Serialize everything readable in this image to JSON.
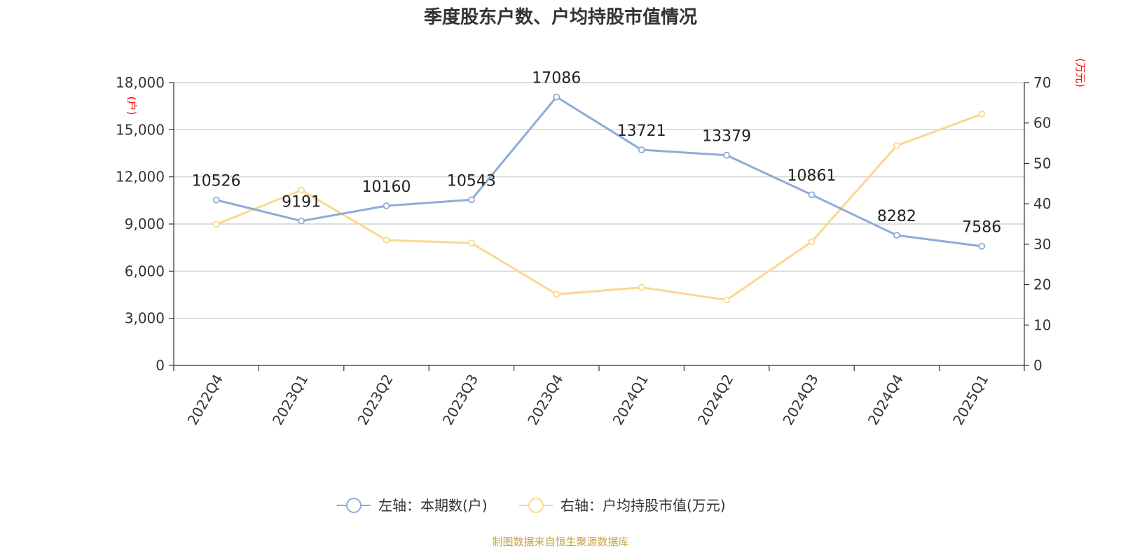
{
  "title": "季度股东户数、户均持股市值情况",
  "source": "制图数据来自恒生聚源数据库",
  "colors": {
    "holders": "#8facd8",
    "avg_value": "#fbd88f",
    "unit_red": "#ff0000",
    "source_gold": "#c9a04a",
    "grid": "#c8c8c8",
    "axis": "#333333"
  },
  "chart_data": {
    "type": "line",
    "title": "季度股东户数、户均持股市值情况",
    "categories": [
      "2022Q4",
      "2023Q1",
      "2023Q2",
      "2023Q3",
      "2023Q4",
      "2024Q1",
      "2024Q2",
      "2024Q3",
      "2024Q4",
      "2025Q1"
    ],
    "left_axis": {
      "unit": "(户)",
      "range": [
        0,
        18000
      ],
      "ticks": [
        0,
        3000,
        6000,
        9000,
        12000,
        15000,
        18000
      ],
      "tick_labels": [
        "0",
        "3,000",
        "6,000",
        "9,000",
        "12,000",
        "15,000",
        "18,000"
      ]
    },
    "right_axis": {
      "unit": "(万元)",
      "range": [
        0,
        70
      ],
      "ticks": [
        0,
        10,
        20,
        30,
        40,
        50,
        60,
        70
      ],
      "tick_labels": [
        "0",
        "10",
        "20",
        "30",
        "40",
        "50",
        "60",
        "70"
      ]
    },
    "series": [
      {
        "name": "左轴：本期数(户)",
        "axis": "left",
        "color": "#8facd8",
        "values": [
          10526,
          9191,
          10160,
          10543,
          17086,
          13721,
          13379,
          10861,
          8282,
          7586
        ],
        "labels": [
          "10526",
          "9191",
          "10160",
          "10543",
          "17086",
          "13721",
          "13379",
          "10861",
          "8282",
          "7586"
        ]
      },
      {
        "name": "右轴：户均持股市值(万元)",
        "axis": "right",
        "color": "#fbd88f",
        "values": [
          34.9,
          43.4,
          31.0,
          30.3,
          17.6,
          19.3,
          16.2,
          30.6,
          54.4,
          62.2
        ]
      }
    ],
    "grid": true,
    "legend_position": "bottom-center"
  }
}
